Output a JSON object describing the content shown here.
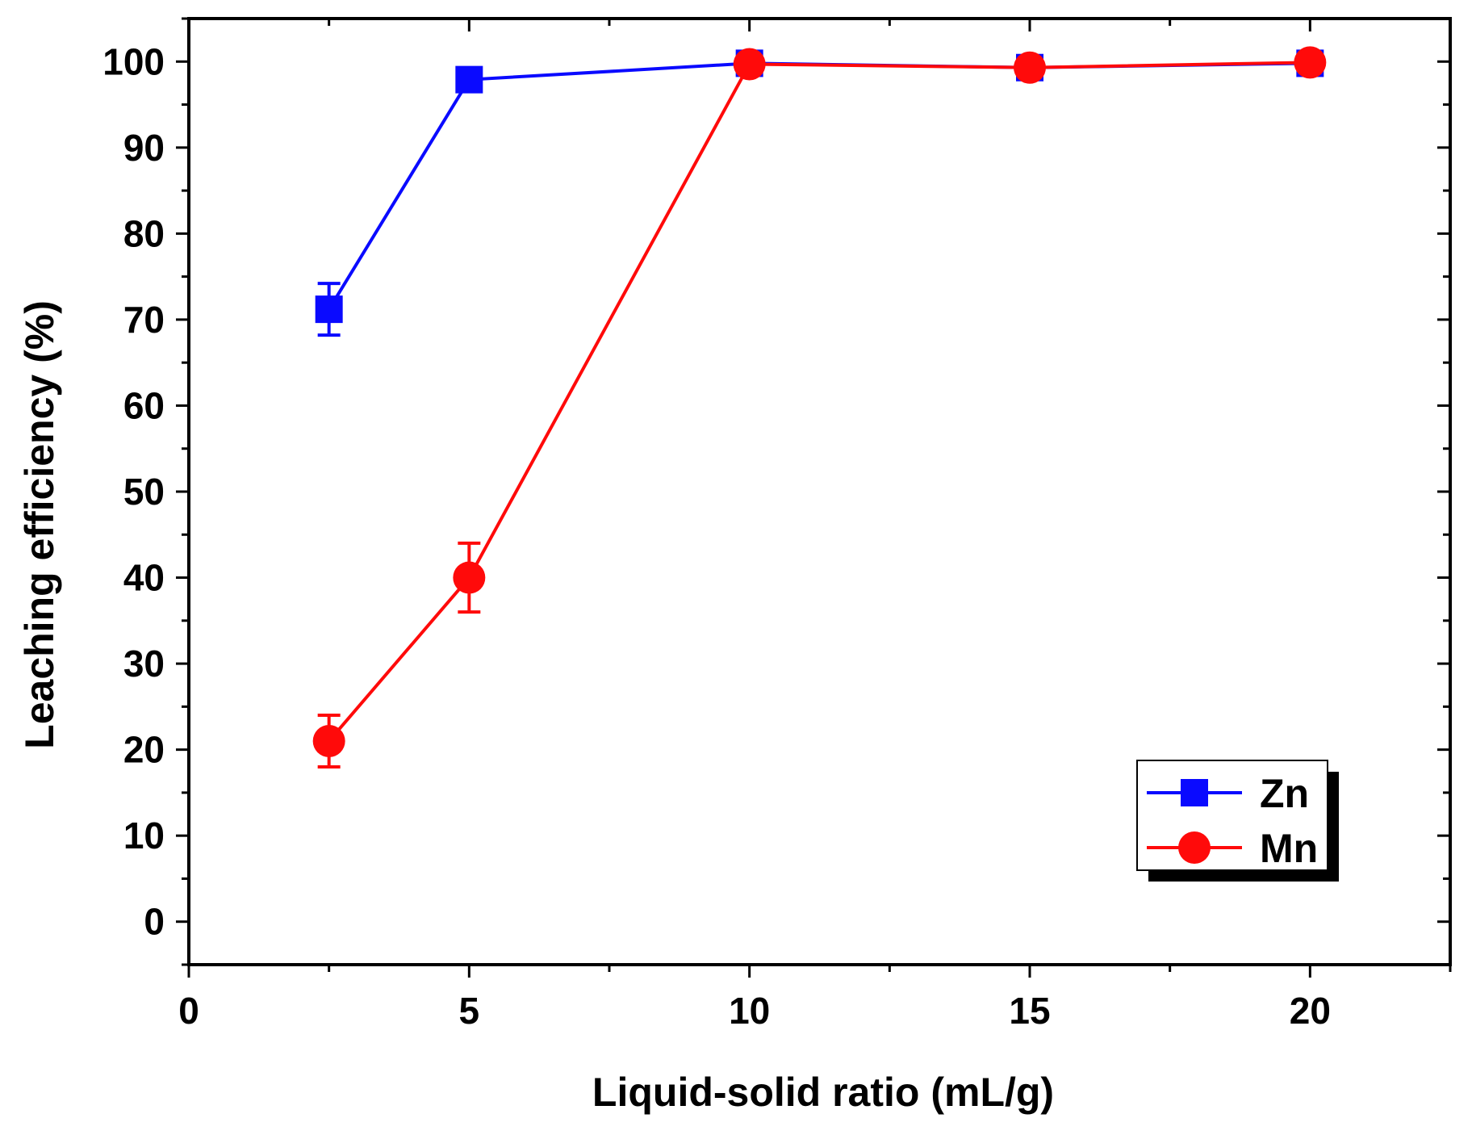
{
  "chart_data": {
    "type": "line",
    "title": "",
    "xlabel": "Liquid-solid ratio (mL/g)",
    "ylabel": "Leaching efficiency (%)",
    "xlim": [
      0,
      22.5
    ],
    "ylim": [
      -5,
      105
    ],
    "xticks": [
      0,
      5,
      10,
      15,
      20
    ],
    "xtick_labels": [
      "0",
      "5",
      "10",
      "15",
      "20"
    ],
    "yticks": [
      0,
      10,
      20,
      30,
      40,
      50,
      60,
      70,
      80,
      90,
      100
    ],
    "ytick_labels": [
      "0",
      "10",
      "20",
      "30",
      "40",
      "50",
      "60",
      "70",
      "80",
      "90",
      "100"
    ],
    "x": [
      2.5,
      5,
      10,
      15,
      20
    ],
    "series": [
      {
        "name": "Zn",
        "marker": "square",
        "color": "#0a0aff",
        "values": [
          71.2,
          97.9,
          99.8,
          99.3,
          99.8
        ],
        "errors": [
          3.0,
          0.6,
          0.6,
          0.5,
          0.4
        ]
      },
      {
        "name": "Mn",
        "marker": "circle",
        "color": "#ff0a0a",
        "values": [
          21.0,
          40.0,
          99.7,
          99.3,
          99.9
        ],
        "errors": [
          3.0,
          4.0,
          0.5,
          0.5,
          0.4
        ]
      }
    ],
    "legend": {
      "position": "bottom-right",
      "entries": [
        "Zn",
        "Mn"
      ]
    },
    "grid": false
  }
}
